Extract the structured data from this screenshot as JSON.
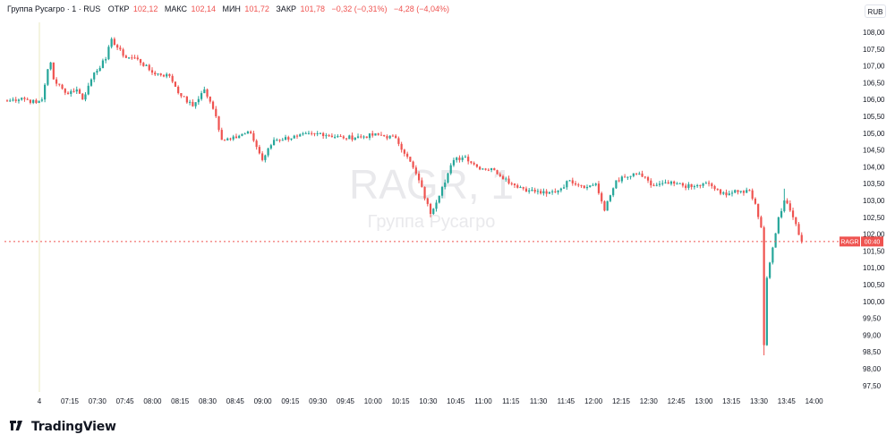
{
  "header": {
    "instrument": "Группа Русагро · 1 · RUS",
    "open_label": "ОТКР",
    "open_value": "102,12",
    "high_label": "МАКС",
    "high_value": "102,14",
    "low_label": "МИН",
    "low_value": "101,72",
    "close_label": "ЗАКР",
    "close_value": "101,78",
    "change": "−0,32 (−0,31%)",
    "change_day": "−4,28 (−4,04%)"
  },
  "currency": "RUB",
  "watermark": {
    "symbol": "RAGR, 1",
    "name": "Группа Русагро"
  },
  "price_label": {
    "ticker": "RAGR",
    "countdown": "00:40"
  },
  "brand": {
    "name": "TradingView"
  },
  "colors": {
    "up": "#26a69a",
    "down": "#ef5350",
    "text": "#131722",
    "grid": "#f0f3fa"
  },
  "chart_data": {
    "type": "candlestick",
    "y_axis_ticks": [
      "108,00",
      "107,50",
      "107,00",
      "106,50",
      "106,00",
      "105,50",
      "105,00",
      "104,50",
      "104,00",
      "103,50",
      "103,00",
      "102,50",
      "102,00",
      "101,50",
      "101,00",
      "100,50",
      "100,00",
      "99,50",
      "99,00",
      "98,50",
      "98,00",
      "97,50"
    ],
    "y_range": [
      97.5,
      108.0
    ],
    "x_axis_ticks": [
      "4",
      "07:15",
      "07:30",
      "07:45",
      "08:00",
      "08:15",
      "08:30",
      "08:45",
      "09:00",
      "09:15",
      "09:30",
      "09:45",
      "10:00",
      "10:15",
      "10:30",
      "10:45",
      "11:00",
      "11:15",
      "11:30",
      "11:45",
      "12:00",
      "12:15",
      "12:30",
      "12:45",
      "13:00",
      "13:15",
      "13:30",
      "13:45",
      "14:00"
    ],
    "last_price": 101.78,
    "path": [
      [
        0,
        105.95
      ],
      [
        5,
        106.05
      ],
      [
        10,
        105.9
      ],
      [
        12,
        106.0
      ],
      [
        14,
        106.9
      ],
      [
        15,
        107.1
      ],
      [
        16,
        106.6
      ],
      [
        20,
        106.2
      ],
      [
        24,
        106.3
      ],
      [
        26,
        106.0
      ],
      [
        30,
        106.8
      ],
      [
        34,
        107.2
      ],
      [
        36,
        107.8
      ],
      [
        40,
        107.3
      ],
      [
        45,
        107.2
      ],
      [
        50,
        106.8
      ],
      [
        56,
        106.7
      ],
      [
        60,
        106.1
      ],
      [
        64,
        105.8
      ],
      [
        68,
        106.3
      ],
      [
        72,
        105.5
      ],
      [
        74,
        104.8
      ],
      [
        78,
        104.9
      ],
      [
        84,
        105.0
      ],
      [
        88,
        104.2
      ],
      [
        92,
        104.8
      ],
      [
        100,
        104.9
      ],
      [
        108,
        105.0
      ],
      [
        116,
        104.85
      ],
      [
        122,
        104.9
      ],
      [
        128,
        104.95
      ],
      [
        134,
        104.85
      ],
      [
        138,
        104.3
      ],
      [
        142,
        103.6
      ],
      [
        146,
        102.6
      ],
      [
        150,
        103.4
      ],
      [
        154,
        104.2
      ],
      [
        158,
        104.3
      ],
      [
        162,
        104.0
      ],
      [
        168,
        103.9
      ],
      [
        174,
        103.5
      ],
      [
        180,
        103.3
      ],
      [
        186,
        103.2
      ],
      [
        190,
        103.3
      ],
      [
        194,
        103.6
      ],
      [
        200,
        103.4
      ],
      [
        203,
        103.5
      ],
      [
        206,
        102.7
      ],
      [
        210,
        103.6
      ],
      [
        214,
        103.7
      ],
      [
        218,
        103.8
      ],
      [
        222,
        103.45
      ],
      [
        230,
        103.5
      ],
      [
        236,
        103.4
      ],
      [
        242,
        103.5
      ],
      [
        246,
        103.2
      ],
      [
        252,
        103.25
      ],
      [
        256,
        103.3
      ],
      [
        258,
        102.9
      ],
      [
        260,
        102.2
      ],
      [
        261,
        98.7
      ],
      [
        262,
        100.7
      ],
      [
        264,
        101.6
      ],
      [
        266,
        102.5
      ],
      [
        268,
        103.0
      ],
      [
        270,
        102.7
      ],
      [
        272,
        102.3
      ],
      [
        274,
        101.78
      ]
    ],
    "lows": {
      "261": 98.4,
      "262": 100.5,
      "146": 102.5,
      "88": 104.2
    },
    "highs": {
      "36": 107.85,
      "268": 103.35
    }
  }
}
